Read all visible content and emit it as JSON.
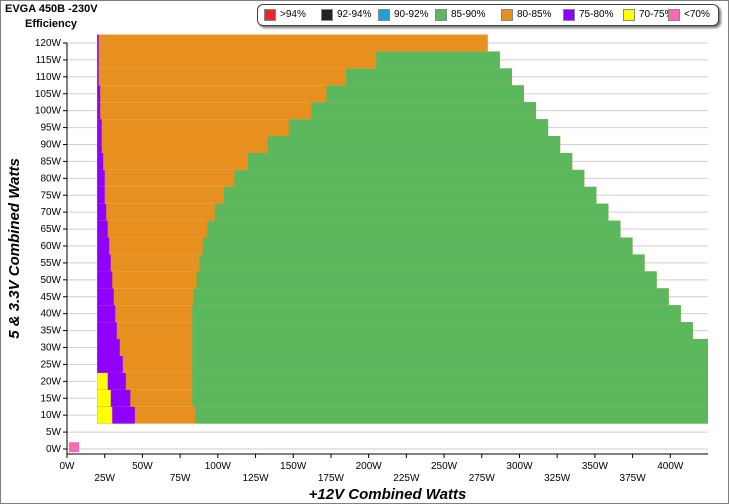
{
  "chart_data": {
    "type": "heatmap",
    "title": "EVGA 450B -230V",
    "subtitle": "Efficiency",
    "xlabel": "+12V Combined Watts",
    "ylabel": "5 & 3.3V Combined Watts",
    "xlim": [
      0,
      425
    ],
    "ylim": [
      0,
      120
    ],
    "x_ticks": [
      "0W",
      "25W",
      "50W",
      "75W",
      "100W",
      "125W",
      "150W",
      "175W",
      "200W",
      "225W",
      "250W",
      "275W",
      "300W",
      "325W",
      "350W",
      "375W",
      "400W"
    ],
    "y_ticks": [
      "0W",
      "5W",
      "10W",
      "15W",
      "20W",
      "25W",
      "30W",
      "35W",
      "40W",
      "45W",
      "50W",
      "55W",
      "60W",
      "65W",
      "70W",
      "75W",
      "80W",
      "85W",
      "90W",
      "95W",
      "100W",
      "105W",
      "110W",
      "115W",
      "120W"
    ],
    "grid": true,
    "legend_placement": "top",
    "legend": [
      {
        "label": ">94%",
        "color": "#e8262e"
      },
      {
        "label": "92-94%",
        "color": "#222222"
      },
      {
        "label": "90-92%",
        "color": "#1fa0d8"
      },
      {
        "label": "85-90%",
        "color": "#5cb85c"
      },
      {
        "label": "80-85%",
        "color": "#e8901f"
      },
      {
        "label": "75-80%",
        "color": "#8f00ff"
      },
      {
        "label": "70-75%",
        "color": "#ffff00"
      },
      {
        "label": "<70%",
        "color": "#ff69b4"
      }
    ],
    "loads_at_zero": {
      "x": 0,
      "y": 0,
      "band": "<70%"
    },
    "region_rows": [
      {
        "y": 10,
        "max_x": 425,
        "yellow_end": 30,
        "purple_end": 45,
        "green_start": 85
      },
      {
        "y": 15,
        "max_x": 425,
        "yellow_end": 29,
        "purple_end": 42,
        "green_start": 83
      },
      {
        "y": 20,
        "max_x": 425,
        "yellow_end": 27,
        "purple_end": 39,
        "green_start": 83
      },
      {
        "y": 25,
        "max_x": 425,
        "yellow_end": 0,
        "purple_end": 37,
        "green_start": 83
      },
      {
        "y": 30,
        "max_x": 425,
        "yellow_end": 0,
        "purple_end": 35,
        "green_start": 83
      },
      {
        "y": 35,
        "max_x": 415,
        "yellow_end": 0,
        "purple_end": 33,
        "green_start": 83
      },
      {
        "y": 40,
        "max_x": 407,
        "yellow_end": 0,
        "purple_end": 32,
        "green_start": 83
      },
      {
        "y": 45,
        "max_x": 399,
        "yellow_end": 0,
        "purple_end": 31,
        "green_start": 84
      },
      {
        "y": 50,
        "max_x": 391,
        "yellow_end": 0,
        "purple_end": 30,
        "green_start": 86
      },
      {
        "y": 55,
        "max_x": 383,
        "yellow_end": 0,
        "purple_end": 29,
        "green_start": 88
      },
      {
        "y": 60,
        "max_x": 375,
        "yellow_end": 0,
        "purple_end": 28,
        "green_start": 90
      },
      {
        "y": 65,
        "max_x": 367,
        "yellow_end": 0,
        "purple_end": 27,
        "green_start": 93
      },
      {
        "y": 70,
        "max_x": 359,
        "yellow_end": 0,
        "purple_end": 26,
        "green_start": 98
      },
      {
        "y": 75,
        "max_x": 351,
        "yellow_end": 0,
        "purple_end": 25,
        "green_start": 104
      },
      {
        "y": 80,
        "max_x": 343,
        "yellow_end": 0,
        "purple_end": 25,
        "green_start": 111
      },
      {
        "y": 85,
        "max_x": 335,
        "yellow_end": 0,
        "purple_end": 24,
        "green_start": 120
      },
      {
        "y": 90,
        "max_x": 327,
        "yellow_end": 0,
        "purple_end": 23,
        "green_start": 133
      },
      {
        "y": 95,
        "max_x": 319,
        "yellow_end": 0,
        "purple_end": 23,
        "green_start": 147
      },
      {
        "y": 100,
        "max_x": 311,
        "yellow_end": 0,
        "purple_end": 22,
        "green_start": 162
      },
      {
        "y": 105,
        "max_x": 303,
        "yellow_end": 0,
        "purple_end": 22,
        "green_start": 172
      },
      {
        "y": 110,
        "max_x": 295,
        "yellow_end": 0,
        "purple_end": 21,
        "green_start": 185
      },
      {
        "y": 115,
        "max_x": 287,
        "yellow_end": 0,
        "purple_end": 21,
        "green_start": 205
      },
      {
        "y": 120,
        "max_x": 279,
        "yellow_end": 0,
        "purple_end": 21,
        "green_start": 999
      }
    ]
  }
}
